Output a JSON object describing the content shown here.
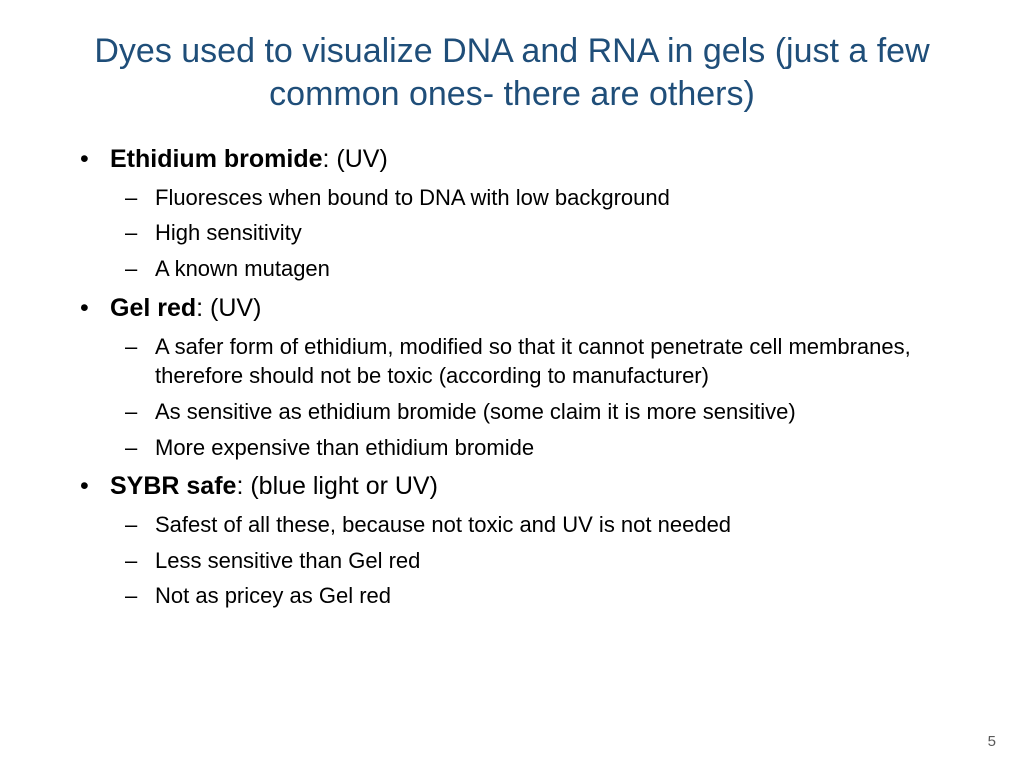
{
  "colors": {
    "title": "#1f4e79",
    "body_text": "#000000",
    "background": "#ffffff",
    "page_num": "#595959"
  },
  "typography": {
    "title_fontsize": 34,
    "level1_fontsize": 25,
    "level2_fontsize": 22,
    "page_num_fontsize": 15,
    "font_family": "Arial"
  },
  "title": "Dyes used to visualize DNA and RNA in gels (just a few common ones- there are others)",
  "items": [
    {
      "name": "Ethidium bromide",
      "suffix": ":  (UV)",
      "sub": [
        "Fluoresces when bound to DNA with low background",
        "High sensitivity",
        "A known mutagen"
      ]
    },
    {
      "name": "Gel red",
      "suffix": ": (UV)",
      "sub": [
        "A safer form of ethidium, modified so that it cannot penetrate cell membranes, therefore should not be toxic (according to manufacturer)",
        "As sensitive as ethidium bromide (some claim it is more sensitive)",
        "More expensive than ethidium bromide"
      ]
    },
    {
      "name": "SYBR safe",
      "suffix": ":  (blue light or UV)",
      "sub": [
        "Safest of all these, because not toxic and UV is not needed",
        "Less sensitive than Gel red",
        "Not as pricey as Gel red"
      ]
    }
  ],
  "page_number": "5"
}
